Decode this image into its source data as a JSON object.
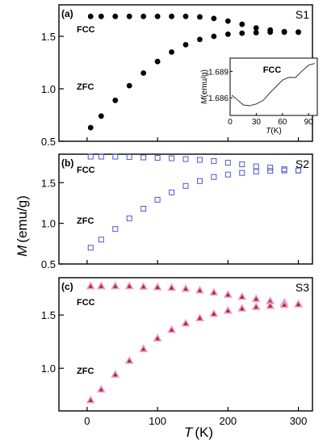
{
  "figure": {
    "ylabel_main": "M",
    "ylabel_unit": "(emu/g)",
    "xlabel_main": "T",
    "xlabel_unit": "(K)"
  },
  "chart_data": [
    {
      "type": "scatter",
      "panel_label": "(a)",
      "sample": "S1",
      "ylim": [
        0.5,
        1.8
      ],
      "xlim": [
        -40,
        320
      ],
      "yticks": [
        "0.5",
        "1.0",
        "1.5"
      ],
      "marker": "filled-circle",
      "color": "#000000",
      "series": [
        {
          "name": "FCC",
          "x": [
            5,
            20,
            40,
            60,
            80,
            100,
            120,
            140,
            160,
            180,
            200,
            220,
            240,
            260,
            280,
            300
          ],
          "y": [
            1.69,
            1.69,
            1.69,
            1.69,
            1.69,
            1.69,
            1.69,
            1.69,
            1.685,
            1.67,
            1.645,
            1.615,
            1.58,
            1.56,
            1.545,
            1.54
          ]
        },
        {
          "name": "ZFC",
          "x": [
            5,
            20,
            40,
            60,
            80,
            100,
            120,
            140,
            160,
            180,
            200,
            220,
            240,
            260,
            280,
            300
          ],
          "y": [
            0.63,
            0.74,
            0.89,
            1.03,
            1.15,
            1.26,
            1.35,
            1.42,
            1.47,
            1.5,
            1.52,
            1.53,
            1.535,
            1.54,
            1.54,
            1.54
          ]
        }
      ],
      "inset": {
        "label": "FCC",
        "xlabel": "T",
        "xunit": "(K)",
        "ylabel": "M",
        "yunit": "(emu/g)",
        "xlim": [
          0,
          100
        ],
        "ylim": [
          1.684,
          1.6905
        ],
        "xticks": [
          "0",
          "30",
          "60",
          "90"
        ],
        "yticks": [
          "1.686",
          "1.689"
        ],
        "x": [
          2,
          8,
          15,
          22,
          30,
          38,
          45,
          52,
          60,
          67,
          75,
          82,
          90,
          97
        ],
        "y": [
          1.6863,
          1.6858,
          1.6852,
          1.6851,
          1.6853,
          1.6857,
          1.6865,
          1.6872,
          1.688,
          1.6883,
          1.6883,
          1.689,
          1.6897,
          1.6899
        ]
      }
    },
    {
      "type": "scatter",
      "panel_label": "(b)",
      "sample": "S2",
      "ylim": [
        0.5,
        1.85
      ],
      "xlim": [
        -40,
        320
      ],
      "yticks": [
        "0.5",
        "1.0",
        "1.5"
      ],
      "marker": "open-square",
      "color": "#4b57d6",
      "series": [
        {
          "name": "FCC",
          "x": [
            5,
            20,
            40,
            60,
            80,
            100,
            120,
            140,
            160,
            180,
            200,
            220,
            240,
            260,
            280,
            300
          ],
          "y": [
            1.82,
            1.82,
            1.82,
            1.815,
            1.81,
            1.805,
            1.8,
            1.79,
            1.78,
            1.765,
            1.745,
            1.725,
            1.7,
            1.685,
            1.665,
            1.65
          ]
        },
        {
          "name": "ZFC",
          "x": [
            5,
            20,
            40,
            60,
            80,
            100,
            120,
            140,
            160,
            180,
            200,
            220,
            240,
            260,
            280,
            300
          ],
          "y": [
            0.7,
            0.8,
            0.93,
            1.06,
            1.18,
            1.29,
            1.38,
            1.46,
            1.52,
            1.57,
            1.6,
            1.62,
            1.635,
            1.645,
            1.65,
            1.65
          ]
        }
      ]
    },
    {
      "type": "scatter",
      "panel_label": "(c)",
      "sample": "S3",
      "ylim": [
        0.6,
        1.85
      ],
      "xlim": [
        -40,
        320
      ],
      "yticks": [
        "1.0",
        "1.5"
      ],
      "xticks": [
        "0",
        "100",
        "200",
        "300"
      ],
      "marker": "filled-triangle",
      "color": "#a8331c",
      "halo_color": "#f0a0d8",
      "series": [
        {
          "name": "FCC",
          "x": [
            5,
            20,
            40,
            60,
            80,
            100,
            120,
            140,
            160,
            180,
            200,
            220,
            240,
            260,
            280,
            300
          ],
          "y": [
            1.77,
            1.77,
            1.77,
            1.77,
            1.765,
            1.76,
            1.755,
            1.745,
            1.73,
            1.71,
            1.69,
            1.67,
            1.65,
            1.63,
            1.615,
            1.6
          ]
        },
        {
          "name": "ZFC",
          "x": [
            5,
            20,
            40,
            60,
            80,
            100,
            120,
            140,
            160,
            180,
            200,
            220,
            240,
            260,
            280,
            300
          ],
          "y": [
            0.7,
            0.8,
            0.94,
            1.07,
            1.18,
            1.28,
            1.36,
            1.42,
            1.47,
            1.51,
            1.54,
            1.56,
            1.575,
            1.585,
            1.595,
            1.6
          ]
        }
      ]
    }
  ]
}
